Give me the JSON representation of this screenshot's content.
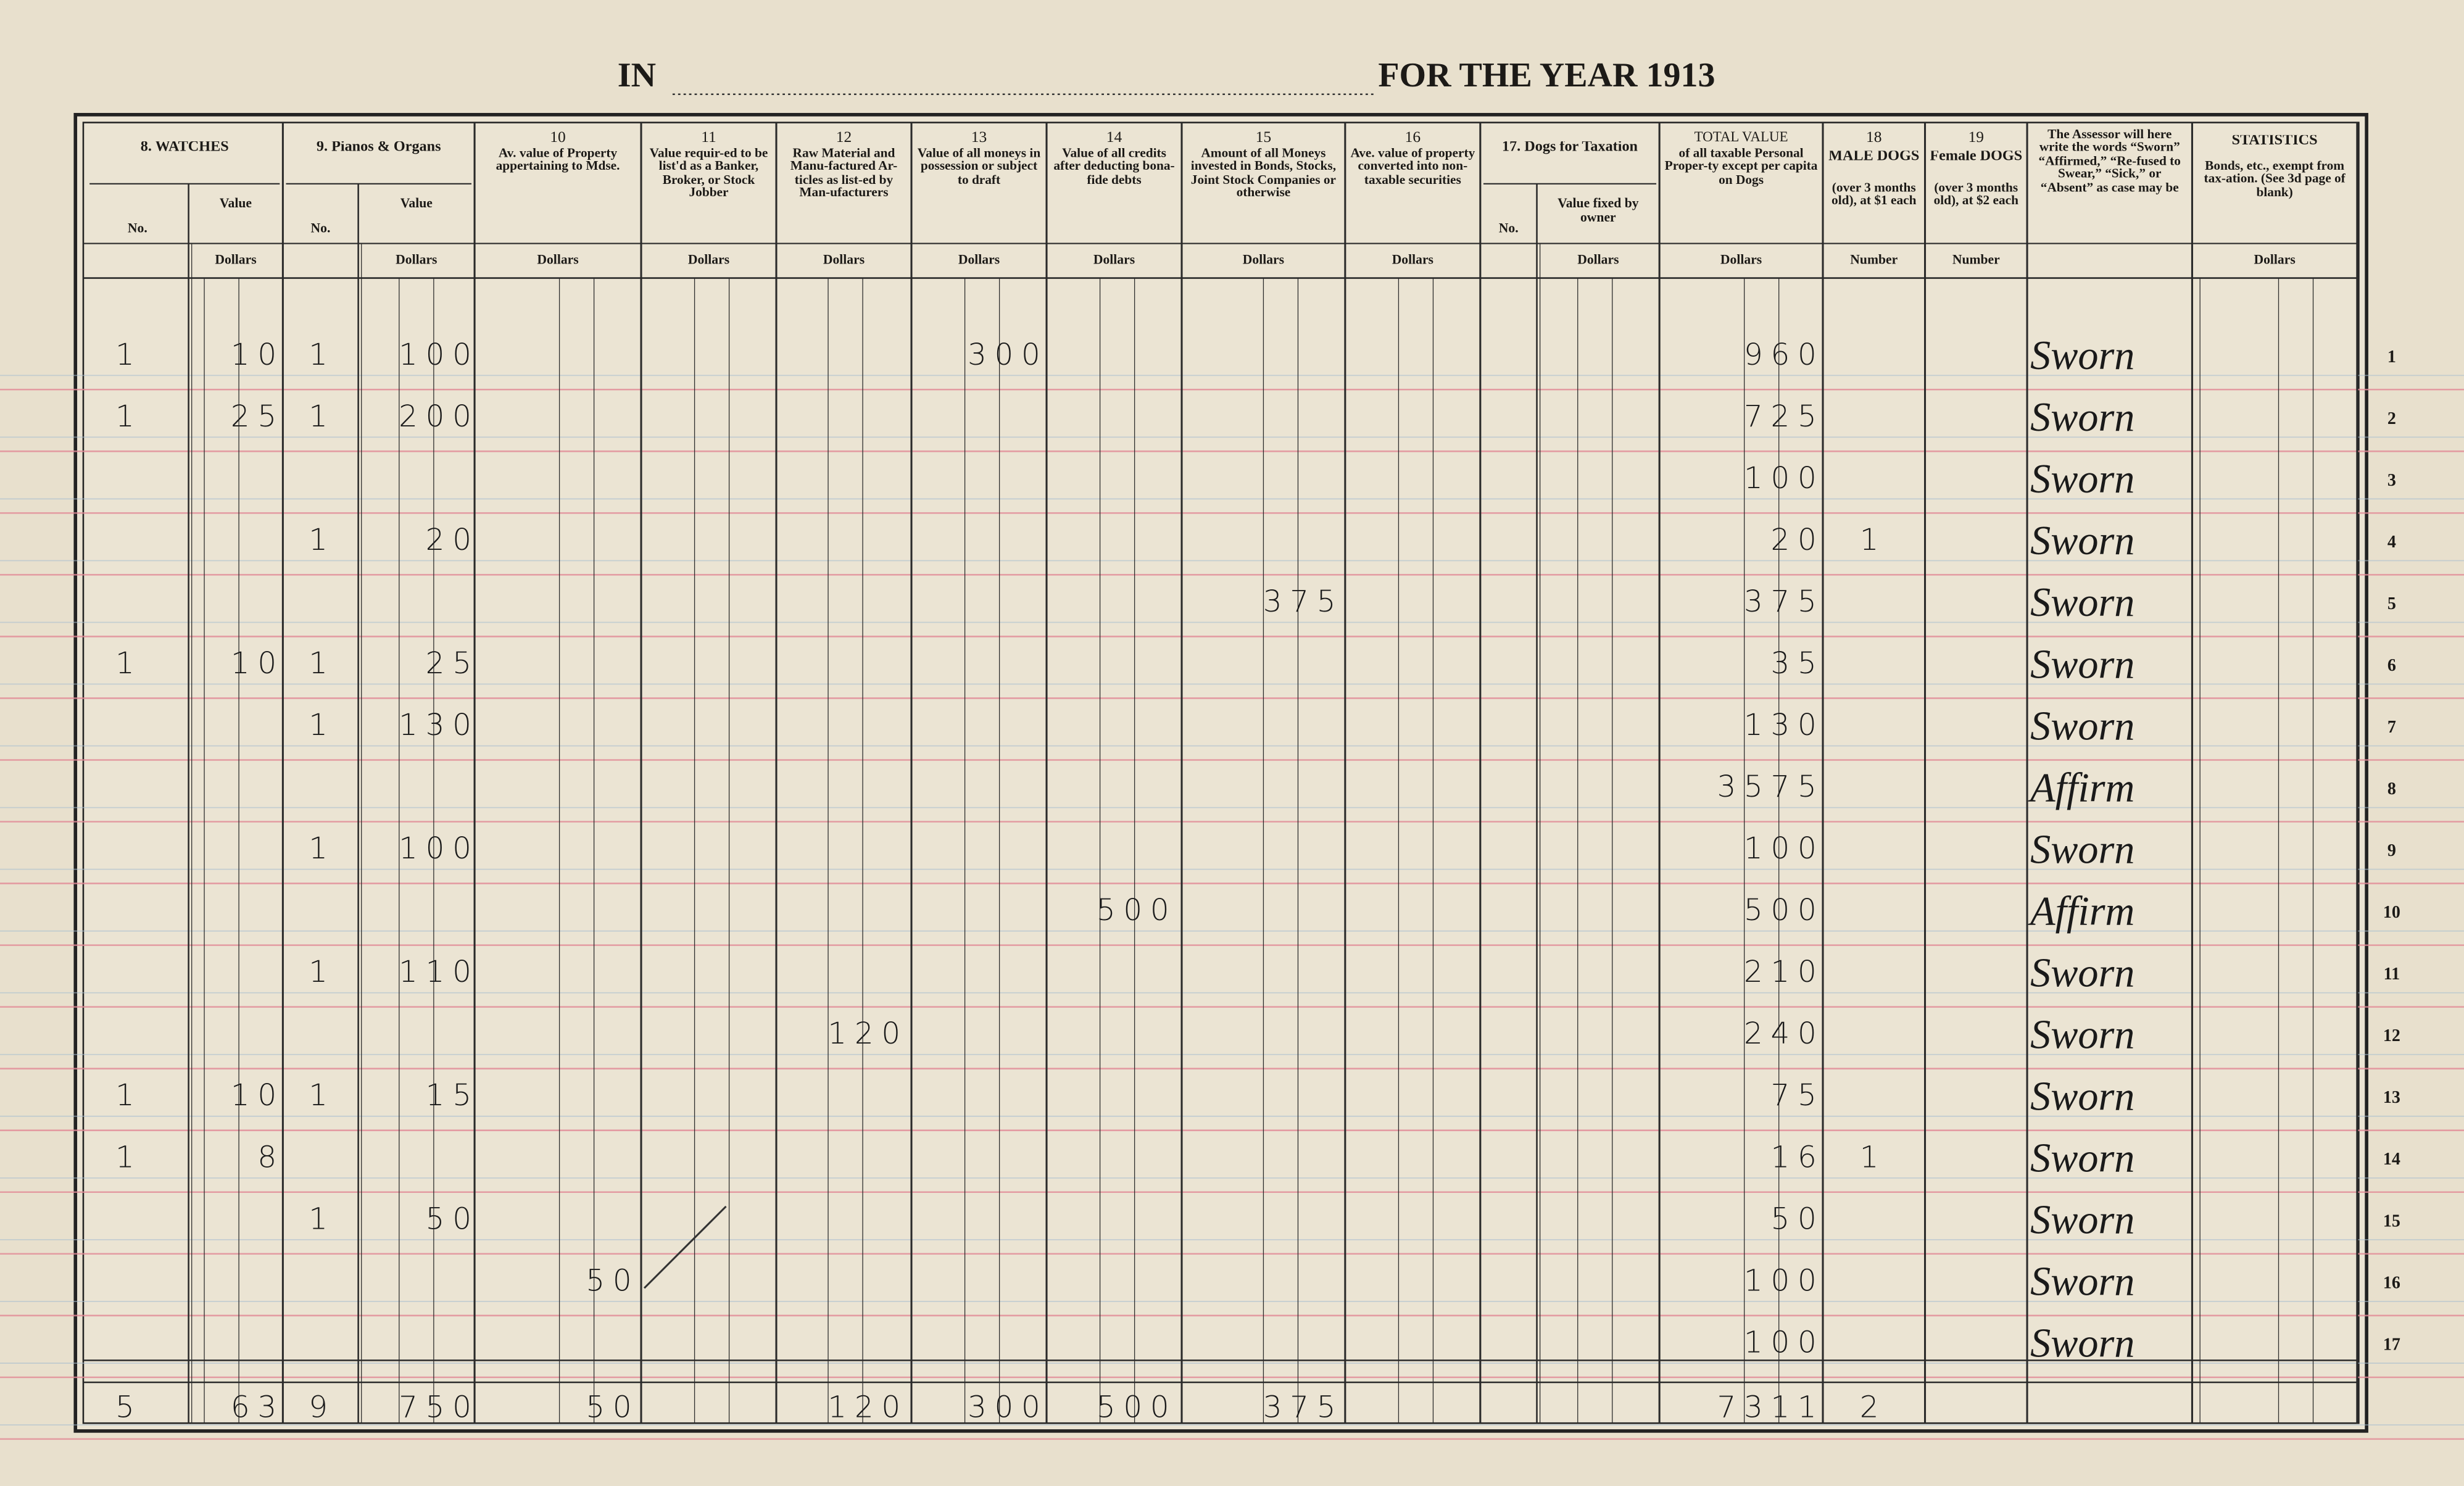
{
  "header": {
    "in": "IN",
    "for_the_year": "FOR THE YEAR 1913"
  },
  "columns": [
    {
      "title": "8. WATCHES",
      "no": "No.",
      "value": "Value",
      "unit": "Dollars"
    },
    {
      "title": "9. Pianos & Organs",
      "no": "No.",
      "value": "Value",
      "unit": "Dollars"
    },
    {
      "number": "10",
      "text": "Av. value of Property appertaining to Mdse.",
      "unit": "Dollars"
    },
    {
      "number": "11",
      "text": "Value requir-ed to be list'd as a Banker, Broker, or Stock Jobber",
      "unit": "Dollars"
    },
    {
      "number": "12",
      "text": "Raw Material and Manu-factured Ar-ticles as list-ed by Man-ufacturers",
      "unit": "Dollars"
    },
    {
      "number": "13",
      "text": "Value of all moneys in possession or subject to draft",
      "unit": "Dollars"
    },
    {
      "number": "14",
      "text": "Value of all credits after deducting bona-fide debts",
      "unit": "Dollars"
    },
    {
      "number": "15",
      "text": "Amount of all Moneys invested in Bonds, Stocks, Joint Stock Companies or otherwise",
      "unit": "Dollars"
    },
    {
      "number": "16",
      "text": "Ave. value of property converted into non-taxable securities",
      "unit": "Dollars"
    },
    {
      "title": "17. Dogs for Taxation",
      "no": "No.",
      "value": "Value fixed by owner",
      "unit": "Dollars"
    },
    {
      "number": "TOTAL VALUE",
      "text": "of all taxable Personal Proper-ty except per capita on Dogs",
      "unit": "Dollars"
    },
    {
      "number": "18",
      "title": "MALE DOGS",
      "text": "(over 3 months old), at $1 each",
      "unit": "Number"
    },
    {
      "number": "19",
      "title": "Female DOGS",
      "text": "(over 3 months old), at $2 each",
      "unit": "Number"
    },
    {
      "text": "The Assessor will here write the words “Sworn” “Affirmed,” “Re-fused to Swear,” “Sick,” or “Absent” as case may be"
    },
    {
      "title": "STATISTICS",
      "text": "Bonds, etc., exempt from tax-ation. (See 3d page of blank)",
      "unit": "Dollars"
    }
  ],
  "rows": [
    {
      "n": 1,
      "cells": [
        1,
        10,
        1,
        100,
        null,
        null,
        null,
        300,
        null,
        null,
        null,
        null,
        null,
        960,
        null,
        null,
        "Sworn"
      ]
    },
    {
      "n": 2,
      "cells": [
        1,
        25,
        1,
        200,
        null,
        null,
        null,
        null,
        null,
        null,
        null,
        null,
        null,
        725,
        null,
        null,
        "Sworn"
      ]
    },
    {
      "n": 3,
      "cells": [
        null,
        null,
        null,
        null,
        null,
        null,
        null,
        null,
        null,
        null,
        null,
        null,
        null,
        100,
        null,
        null,
        "Sworn"
      ]
    },
    {
      "n": 4,
      "cells": [
        null,
        null,
        1,
        20,
        null,
        null,
        null,
        null,
        null,
        null,
        null,
        null,
        null,
        20,
        1,
        null,
        "Sworn"
      ]
    },
    {
      "n": 5,
      "cells": [
        null,
        null,
        null,
        null,
        null,
        null,
        null,
        null,
        null,
        375,
        null,
        null,
        null,
        375,
        null,
        null,
        "Sworn"
      ]
    },
    {
      "n": 6,
      "cells": [
        1,
        10,
        1,
        25,
        null,
        null,
        null,
        null,
        null,
        null,
        null,
        null,
        null,
        35,
        null,
        null,
        "Sworn"
      ]
    },
    {
      "n": 7,
      "cells": [
        null,
        null,
        1,
        130,
        null,
        null,
        null,
        null,
        null,
        null,
        null,
        null,
        null,
        130,
        null,
        null,
        "Sworn"
      ]
    },
    {
      "n": 8,
      "cells": [
        null,
        null,
        null,
        null,
        null,
        null,
        null,
        null,
        null,
        null,
        null,
        null,
        null,
        3575,
        null,
        null,
        "Affirm"
      ]
    },
    {
      "n": 9,
      "cells": [
        null,
        null,
        1,
        100,
        null,
        null,
        null,
        null,
        null,
        null,
        null,
        null,
        null,
        100,
        null,
        null,
        "Sworn"
      ]
    },
    {
      "n": 10,
      "cells": [
        null,
        null,
        null,
        null,
        null,
        null,
        null,
        null,
        500,
        null,
        null,
        null,
        null,
        500,
        null,
        null,
        "Affirm"
      ]
    },
    {
      "n": 11,
      "cells": [
        null,
        null,
        1,
        110,
        null,
        null,
        null,
        null,
        null,
        null,
        null,
        null,
        null,
        210,
        null,
        null,
        "Sworn"
      ]
    },
    {
      "n": 12,
      "cells": [
        null,
        null,
        null,
        null,
        null,
        null,
        120,
        null,
        null,
        null,
        null,
        null,
        null,
        240,
        null,
        null,
        "Sworn"
      ]
    },
    {
      "n": 13,
      "cells": [
        1,
        10,
        1,
        15,
        null,
        null,
        null,
        null,
        null,
        null,
        null,
        null,
        null,
        75,
        null,
        null,
        "Sworn"
      ]
    },
    {
      "n": 14,
      "cells": [
        1,
        8,
        null,
        null,
        null,
        null,
        null,
        null,
        null,
        null,
        null,
        null,
        null,
        16,
        1,
        null,
        "Sworn"
      ]
    },
    {
      "n": 15,
      "cells": [
        null,
        null,
        1,
        50,
        null,
        null,
        null,
        null,
        null,
        null,
        null,
        null,
        null,
        50,
        null,
        null,
        "Sworn"
      ]
    },
    {
      "n": 16,
      "cells": [
        null,
        null,
        null,
        null,
        50,
        null,
        null,
        null,
        null,
        null,
        null,
        null,
        null,
        100,
        null,
        null,
        "Sworn"
      ]
    },
    {
      "n": 17,
      "cells": [
        null,
        null,
        null,
        null,
        null,
        null,
        null,
        null,
        null,
        null,
        null,
        null,
        null,
        100,
        null,
        null,
        "Sworn"
      ]
    }
  ],
  "totals": [
    5,
    63,
    9,
    750,
    50,
    null,
    120,
    300,
    500,
    375,
    null,
    null,
    null,
    7311,
    2,
    null,
    null
  ]
}
